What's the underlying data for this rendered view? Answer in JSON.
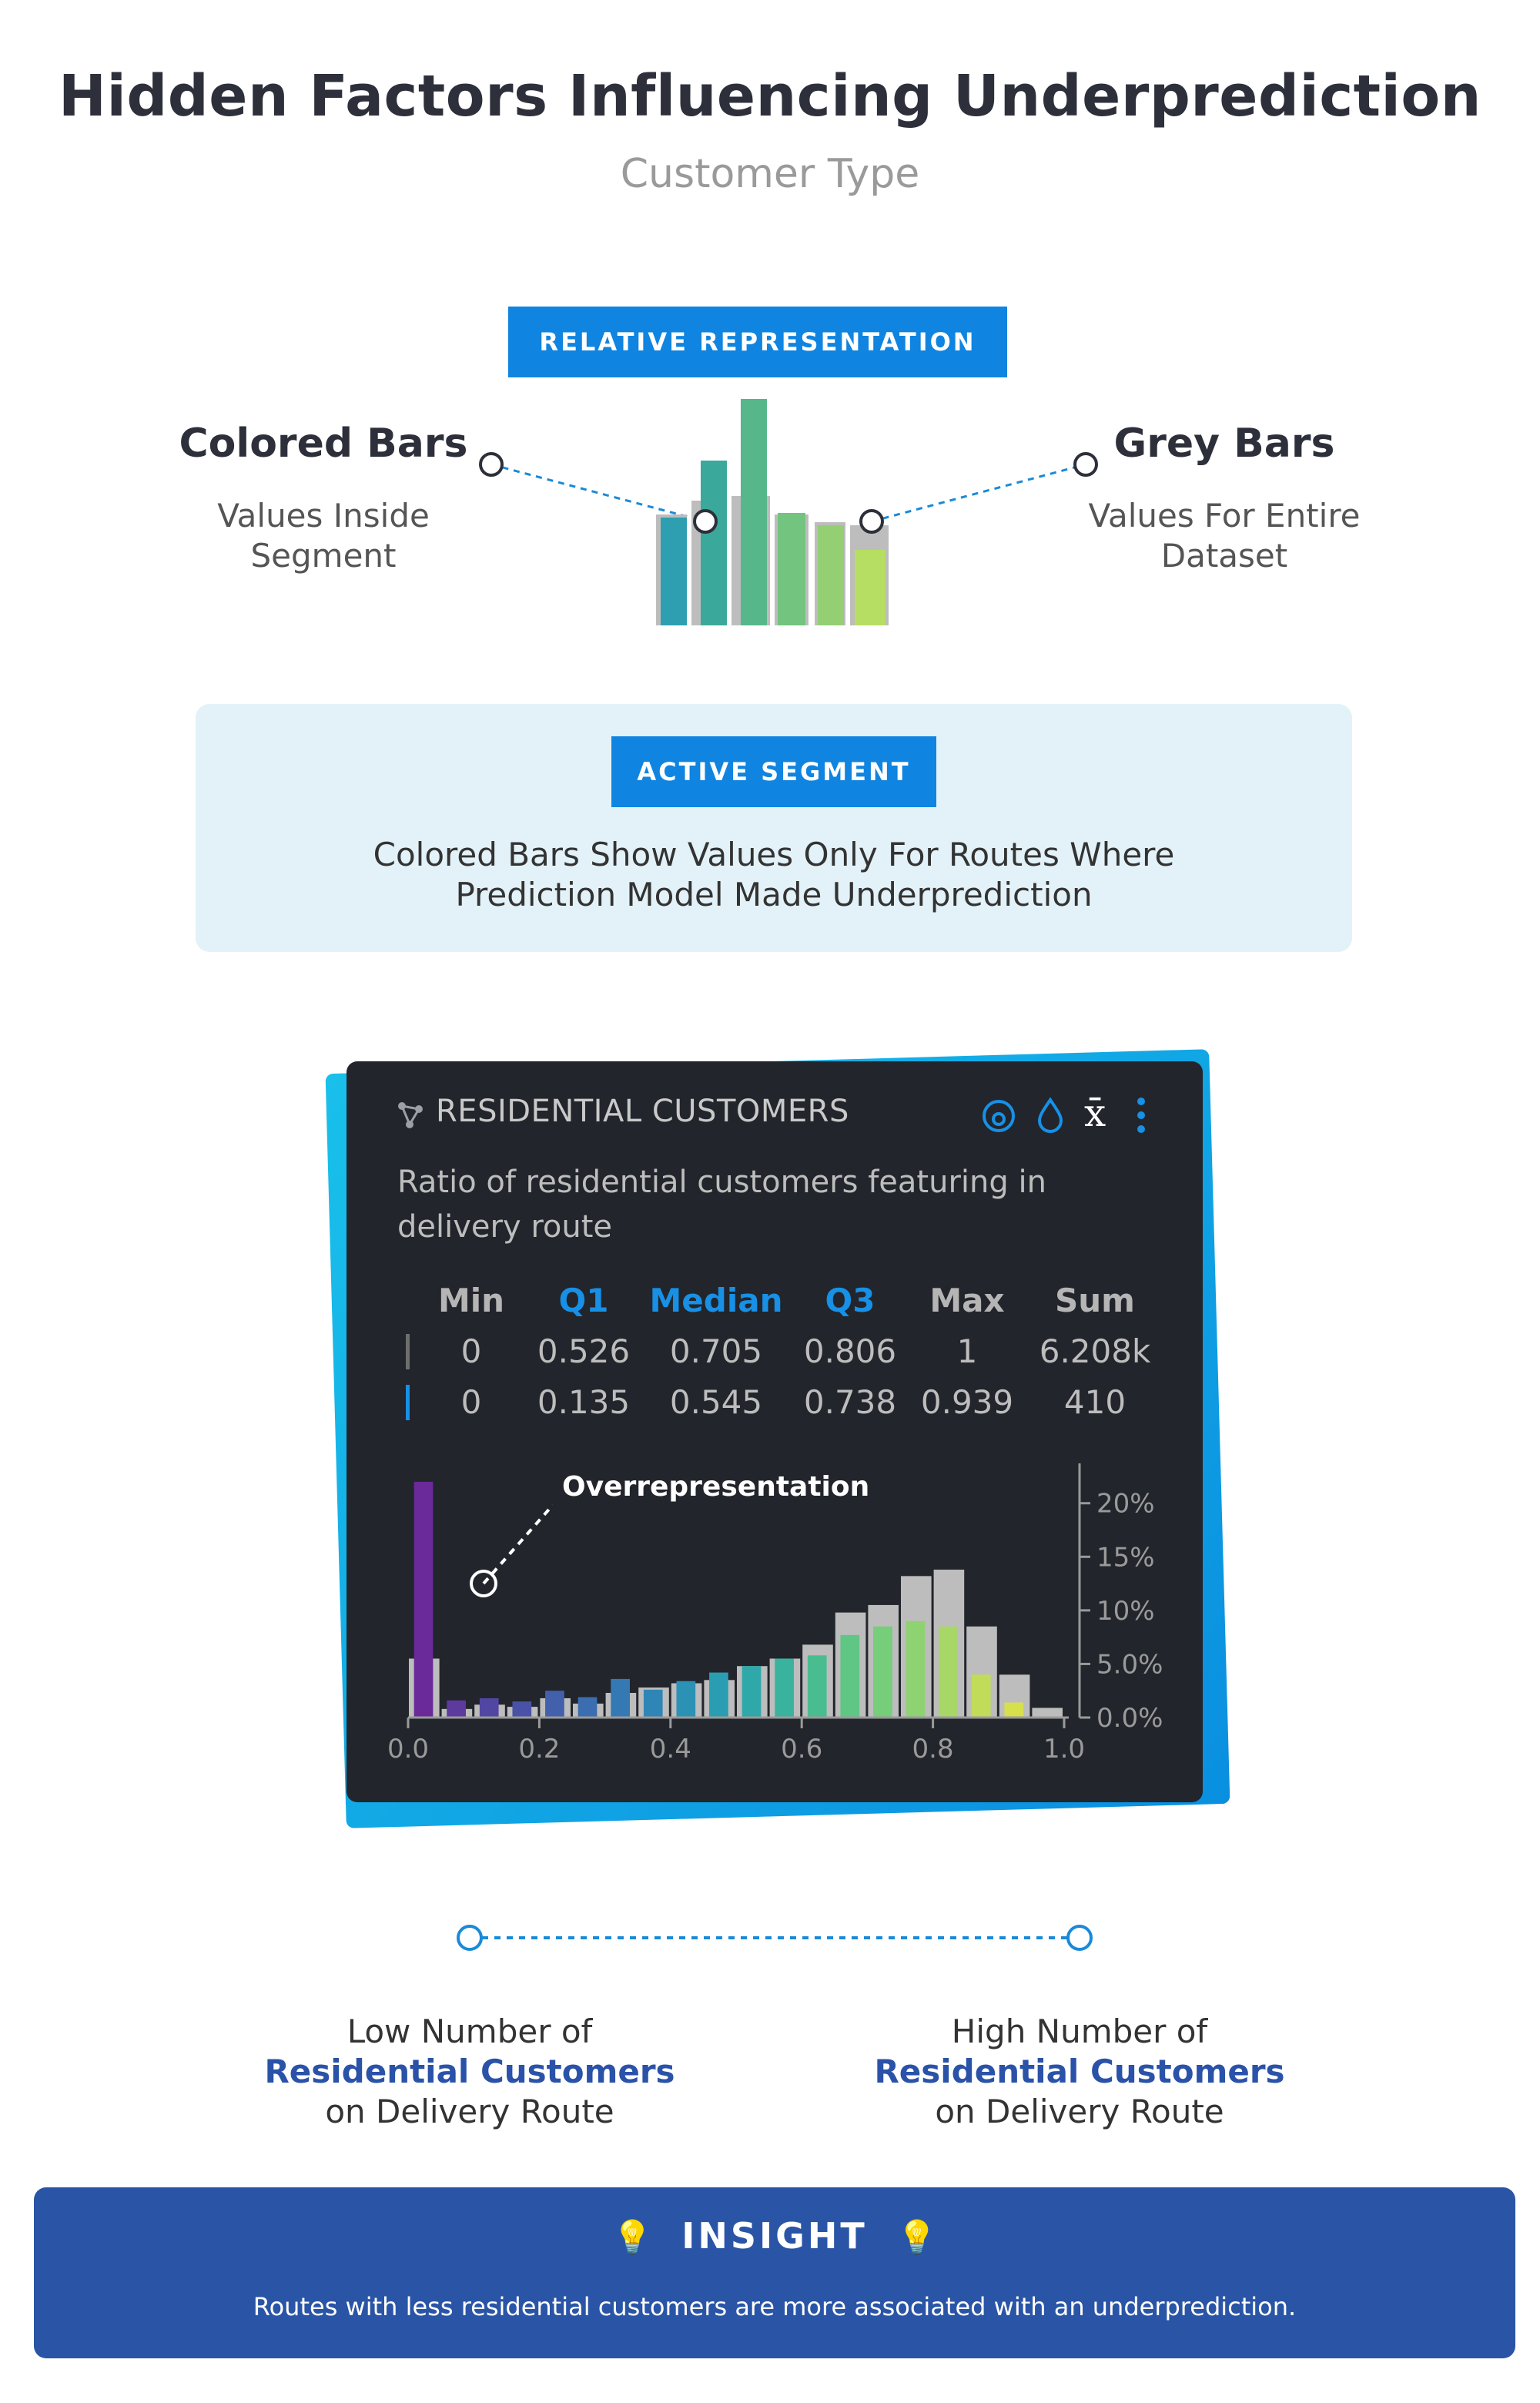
{
  "header": {
    "title": "Hidden Factors Influencing Underprediction",
    "subtitle": "Customer Type"
  },
  "legend": {
    "tag": "RELATIVE REPRESENTATION",
    "left_head": "Colored Bars",
    "left_sub_1": "Values Inside",
    "left_sub_2": "Segment",
    "right_head": "Grey Bars",
    "right_sub_1": "Values For Entire",
    "right_sub_2": "Dataset"
  },
  "segment": {
    "tag": "ACTIVE SEGMENT",
    "text_1": "Colored Bars Show Values Only For Routes Where",
    "text_2": "Prediction Model Made Underprediction"
  },
  "panel": {
    "title": "RESIDENTIAL CUSTOMERS",
    "description": "Ratio of residential customers featuring in delivery route",
    "icons": [
      "network-icon",
      "target-icon",
      "drop-icon",
      "mean-icon",
      "more-icon"
    ],
    "mean_symbol": "x̄",
    "stats": {
      "headers": [
        "Min",
        "Q1",
        "Median",
        "Q3",
        "Max",
        "Sum"
      ],
      "dataset_row": [
        "0",
        "0.526",
        "0.705",
        "0.806",
        "1",
        "6.208k"
      ],
      "segment_row": [
        "0",
        "0.135",
        "0.545",
        "0.738",
        "0.939",
        "410"
      ]
    },
    "annotation": "Overrepresentation"
  },
  "colors": {
    "accent": "#0f84e0",
    "insight": "#2a55a6",
    "grey_bar": "#bdbdbd",
    "panel_bg": "#22252b"
  },
  "chart_data": {
    "type": "bar",
    "title": "RESIDENTIAL CUSTOMERS",
    "xlabel": "",
    "ylabel": "",
    "x_ticks": [
      "0.0",
      "0.2",
      "0.4",
      "0.6",
      "0.8",
      "1.0"
    ],
    "y_ticks": [
      "0.0%",
      "5.0%",
      "10%",
      "15%",
      "20%"
    ],
    "xlim": [
      0,
      1
    ],
    "ylim": [
      0,
      23
    ],
    "bin_width": 0.05,
    "series": [
      {
        "name": "Entire Dataset",
        "bin_starts": [
          0,
          0.05,
          0.1,
          0.15,
          0.2,
          0.25,
          0.3,
          0.35,
          0.4,
          0.45,
          0.5,
          0.55,
          0.6,
          0.65,
          0.7,
          0.75,
          0.8,
          0.85,
          0.9,
          0.95
        ],
        "values": [
          5.5,
          0.8,
          1.2,
          1.0,
          1.8,
          1.3,
          2.3,
          2.8,
          3.2,
          3.5,
          4.8,
          5.5,
          6.8,
          9.8,
          10.5,
          13.2,
          13.8,
          8.5,
          4.0,
          0.9
        ]
      },
      {
        "name": "Underprediction Segment",
        "bin_starts": [
          0,
          0.05,
          0.1,
          0.15,
          0.2,
          0.25,
          0.3,
          0.35,
          0.4,
          0.45,
          0.5,
          0.55,
          0.6,
          0.65,
          0.7,
          0.75,
          0.8,
          0.85,
          0.9,
          0.95
        ],
        "values": [
          22.0,
          1.6,
          1.8,
          1.5,
          2.5,
          1.9,
          3.6,
          2.6,
          3.4,
          4.2,
          4.8,
          5.5,
          5.8,
          7.7,
          8.5,
          9.0,
          8.5,
          4.0,
          1.4,
          0.0
        ]
      }
    ]
  },
  "axis_legend": {
    "low_1": "Low Number of",
    "low_2": "Residential Customers",
    "low_3": "on Delivery Route",
    "high_1": "High Number of",
    "high_2": "Residential Customers",
    "high_3": "on Delivery Route"
  },
  "insight": {
    "title": "INSIGHT",
    "text": "Routes with less residential customers are more associated with an underprediction."
  }
}
